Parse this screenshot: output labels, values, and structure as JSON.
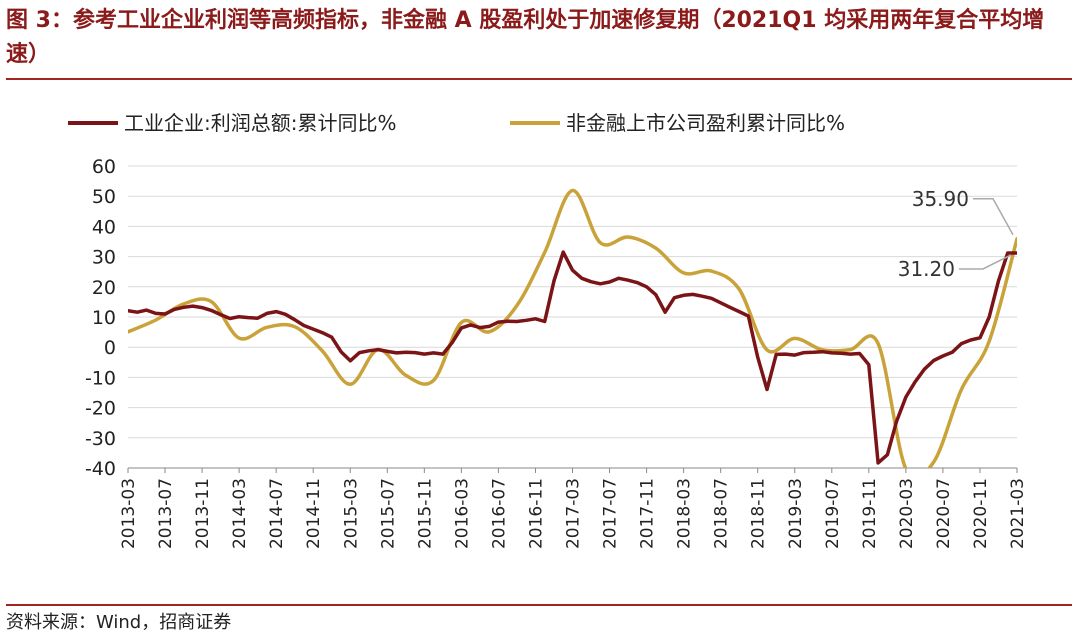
{
  "title": "图 3：参考工业企业利润等高频指标，非金融 A 股盈利处于加速修复期（2021Q1 均采用两年复合平均增速）",
  "source": "资料来源：Wind，招商证券",
  "chart_data": {
    "type": "line",
    "ylim": [
      -40,
      60
    ],
    "yticks": [
      60,
      50,
      40,
      30,
      20,
      10,
      0,
      -10,
      -20,
      -30,
      -40
    ],
    "xticks": [
      "2013-03",
      "2013-07",
      "2013-11",
      "2014-03",
      "2014-07",
      "2014-11",
      "2015-03",
      "2015-07",
      "2015-11",
      "2016-03",
      "2016-07",
      "2016-11",
      "2017-03",
      "2017-07",
      "2017-11",
      "2018-03",
      "2018-07",
      "2018-11",
      "2019-03",
      "2019-07",
      "2019-11",
      "2020-03",
      "2020-07",
      "2020-11",
      "2021-03"
    ],
    "grid": true,
    "legend_position": "top",
    "colors": {
      "industrial": "#7b1416",
      "nonfinancial": "#c9a23a",
      "grid": "#d9d9d9",
      "axis": "#888888",
      "annotation_line": "#aaaaaa"
    },
    "series": [
      {
        "name": "工业企业:利润总额:累计同比%",
        "color": "#7b1416",
        "x": [
          0,
          1,
          2,
          3,
          4,
          5,
          6,
          7,
          8,
          9,
          10,
          11,
          12,
          13,
          14,
          15,
          16,
          17,
          18,
          19,
          20,
          21,
          22,
          23,
          24,
          25,
          26,
          27,
          28,
          29,
          30,
          31,
          32,
          33,
          34,
          35,
          36,
          37,
          38,
          39,
          40,
          41,
          42,
          43,
          44,
          45,
          46,
          47,
          48,
          49,
          50,
          51,
          52,
          53,
          54,
          55,
          56,
          57,
          58,
          59,
          60,
          61,
          62,
          63,
          64,
          65,
          66,
          67,
          68,
          69,
          70,
          71,
          72,
          73,
          74,
          75,
          76,
          77,
          78,
          79,
          80,
          81,
          82,
          83,
          84,
          85,
          86,
          87,
          88,
          89,
          90,
          91,
          92,
          93,
          94,
          95,
          96
        ],
        "values": [
          12.1,
          11.6,
          12.3,
          11.2,
          11.0,
          12.5,
          13.2,
          13.6,
          13.1,
          12.2,
          10.8,
          9.5,
          10.1,
          9.8,
          9.6,
          11.2,
          11.8,
          10.9,
          9.1,
          7.2,
          6.0,
          4.8,
          3.3,
          -1.5,
          -4.5,
          -1.8,
          -1.2,
          -0.8,
          -1.4,
          -1.9,
          -1.7,
          -1.8,
          -2.3,
          -1.9,
          -2.3,
          1.5,
          6.4,
          7.4,
          6.5,
          6.9,
          8.3,
          8.6,
          8.5,
          8.9,
          9.4,
          8.5,
          22.0,
          31.5,
          25.5,
          22.8,
          21.7,
          21.0,
          21.6,
          22.8,
          22.2,
          21.4,
          20.0,
          17.4,
          11.6,
          16.4,
          17.2,
          17.5,
          16.9,
          16.2,
          14.7,
          13.2,
          11.8,
          10.3,
          -3.3,
          -14.0,
          -2.4,
          -2.3,
          -2.6,
          -1.8,
          -1.7,
          -1.5,
          -1.9,
          -2.0,
          -2.3,
          -2.1,
          -5.8,
          -38.3,
          -35.6,
          -24.5,
          -16.5,
          -11.5,
          -7.3,
          -4.4,
          -2.9,
          -1.7,
          1.2,
          2.4,
          3.1,
          10.0,
          22.0,
          31.2,
          31.2
        ],
        "last_label": "31.20"
      },
      {
        "name": "非金融上市公司盈利累计同比%",
        "color": "#c9a23a",
        "x": [
          0,
          3,
          6,
          9,
          12,
          15,
          18,
          21,
          24,
          27,
          30,
          33,
          36,
          39,
          42,
          45,
          48,
          51,
          54,
          57,
          60,
          63,
          66,
          69,
          72,
          75,
          78,
          81,
          84,
          87,
          90,
          93,
          96
        ],
        "values": [
          5.1,
          9.0,
          14.3,
          15.1,
          3.0,
          6.6,
          6.8,
          -1.3,
          -12.3,
          -0.8,
          -9.3,
          -11.0,
          8.2,
          5.1,
          13.8,
          31.4,
          51.9,
          34.6,
          36.5,
          32.8,
          24.6,
          25.2,
          19.2,
          -0.9,
          2.9,
          -0.9,
          -0.8,
          1.2,
          -40.3,
          -38.0,
          -14.0,
          2.0,
          35.9
        ],
        "last_label": "35.90"
      }
    ]
  }
}
